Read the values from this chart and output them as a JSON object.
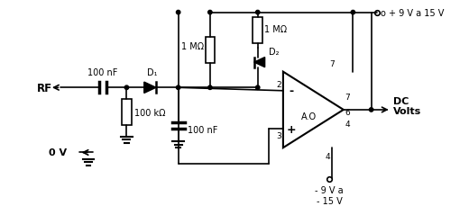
{
  "bg_color": "#ffffff",
  "line_color": "#000000",
  "figsize": [
    5.2,
    2.3
  ],
  "dpi": 100,
  "labels": {
    "RF": "RF",
    "0V": "0 V",
    "C1": "100 nF",
    "R1": "100 kΩ",
    "R2": "1 MΩ",
    "R3": "1 MΩ",
    "C2": "100 nF",
    "D1": "D₁",
    "D2": "D₂",
    "AO": "A.O",
    "pin2": "2",
    "pin3": "3",
    "pin4": "4",
    "pin6": "6",
    "pin7": "7",
    "vpos": "o + 9 V a 15 V",
    "vneg": "- 9 V a\n- 15 V",
    "dc": "DC\nVolts"
  }
}
